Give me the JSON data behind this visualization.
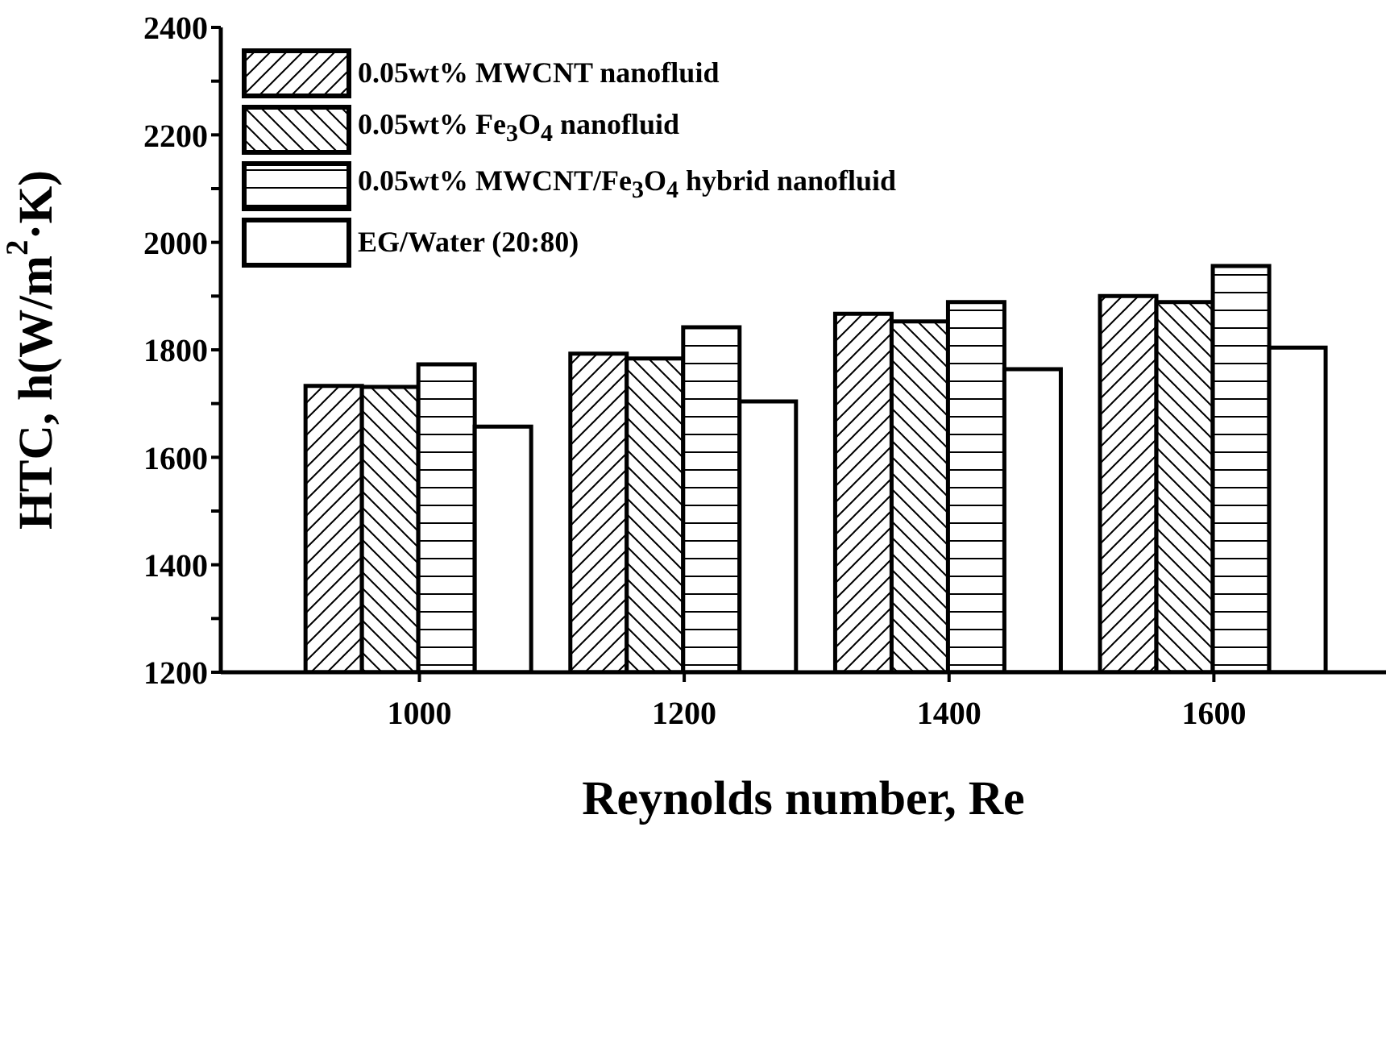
{
  "chart_data": {
    "type": "bar",
    "xlabel": "Reynolds number, Re",
    "ylabel": "HTC, h(W/m$^{2}$·K)",
    "x": [
      1000,
      1200,
      1400,
      1600
    ],
    "series": [
      {
        "name": "0.05wt% MWCNT nanofluid",
        "color": "#000000",
        "values": [
          1733,
          1793,
          1867,
          1900
        ]
      },
      {
        "name": "0.05wt% Fe$_{3}$O$_{4}$ nanofluid",
        "color": "#000000",
        "values": [
          1731,
          1784,
          1853,
          1889
        ]
      },
      {
        "name": "0.05wt% MWCNT/Fe$_{3}$O$_{4}$ hybrid nanofluid",
        "color": "#000000",
        "values": [
          1773,
          1842,
          1889,
          1956
        ]
      },
      {
        "name": "EG/Water (20:80)",
        "color": "#000000",
        "values": [
          1657,
          1704,
          1764,
          1804
        ]
      }
    ],
    "xlim": [
      850,
      1730
    ],
    "xticks": [
      1000,
      1200,
      1400,
      1600
    ],
    "ylim": [
      1200,
      2400
    ],
    "yticks": [
      1200,
      {
        "value": 1300,
        "label": null
      },
      1400,
      {
        "value": 1500,
        "label": null
      },
      1600,
      {
        "value": 1700,
        "label": null
      },
      1800,
      {
        "value": 1900,
        "label": null
      },
      2000,
      {
        "value": 2100,
        "label": null
      },
      2200,
      {
        "value": 2300,
        "label": null
      },
      2400
    ],
    "legend": "top left"
  }
}
